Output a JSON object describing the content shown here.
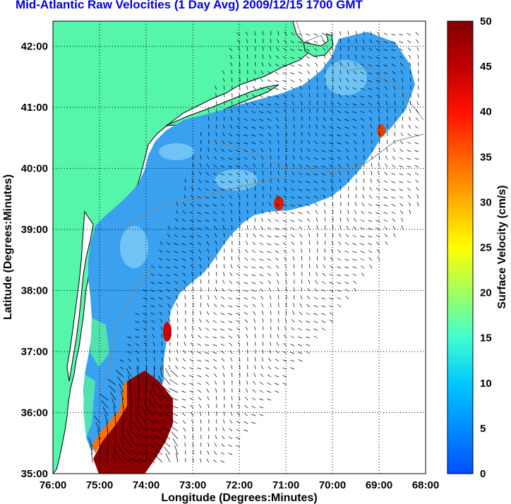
{
  "title": "Mid-Atlantic Raw Velocities (1 Day Avg) 2009/12/15 1700 GMT",
  "xaxis": {
    "label": "Longitude (Degrees:Minutes)",
    "ticks": [
      "76:00",
      "75:00",
      "74:00",
      "73:00",
      "72:00",
      "71:00",
      "70:00",
      "69:00",
      "68:00"
    ]
  },
  "yaxis": {
    "label": "Latitude (Degrees:Minutes)",
    "ticks": [
      "35:00",
      "36:00",
      "37:00",
      "38:00",
      "39:00",
      "40:00",
      "41:00",
      "42:00"
    ]
  },
  "colorbar": {
    "label": "Surface Velocity (cm/s)",
    "ticks": [
      "0",
      "5",
      "10",
      "15",
      "20",
      "25",
      "30",
      "35",
      "40",
      "45",
      "50"
    ],
    "range": [
      0,
      50
    ]
  },
  "colors": {
    "land": "#55f5aa",
    "ocean_field": "#3aa0f0",
    "high_speed": "#8b0000",
    "title": "#0000e0"
  }
}
